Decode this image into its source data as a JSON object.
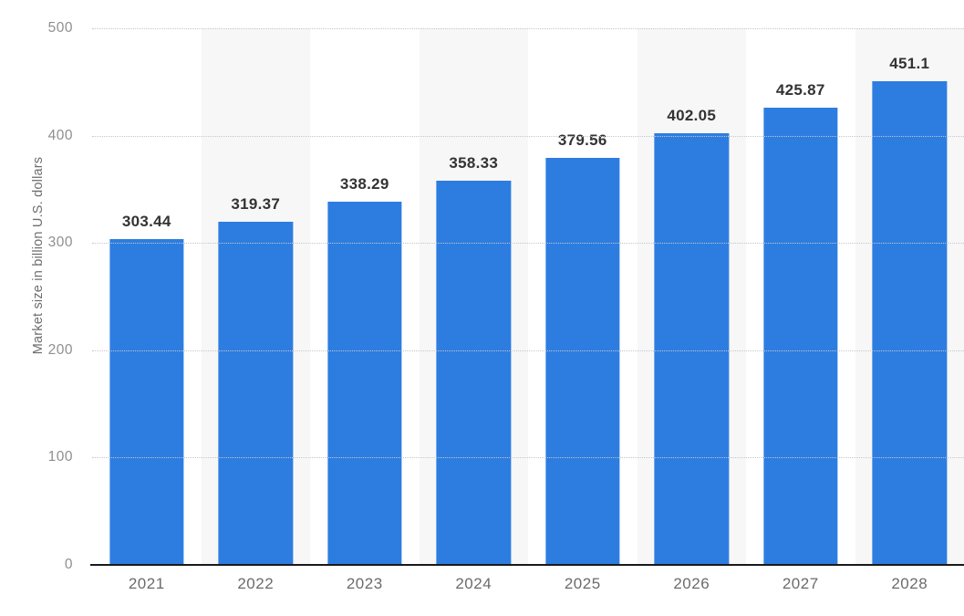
{
  "chart_data": {
    "type": "bar",
    "categories": [
      "2021",
      "2022",
      "2023",
      "2024",
      "2025",
      "2026",
      "2027",
      "2028"
    ],
    "values": [
      303.44,
      319.37,
      338.29,
      358.33,
      379.56,
      402.05,
      425.87,
      451.1
    ],
    "value_labels": [
      "303.44",
      "319.37",
      "338.29",
      "358.33",
      "379.56",
      "402.05",
      "425.87",
      "451.1"
    ],
    "title": "",
    "xlabel": "",
    "ylabel": "Market size in billion U.S. dollars",
    "ylim": [
      0,
      500
    ],
    "yticks": [
      "500",
      "400",
      "300",
      "200",
      "100",
      "0"
    ],
    "grid": "horizontal-dotted",
    "legend": "none",
    "bar_color": "#2d7de1",
    "stripe_color": "#f7f7f7",
    "baseline_color": "#1a1a1a"
  }
}
